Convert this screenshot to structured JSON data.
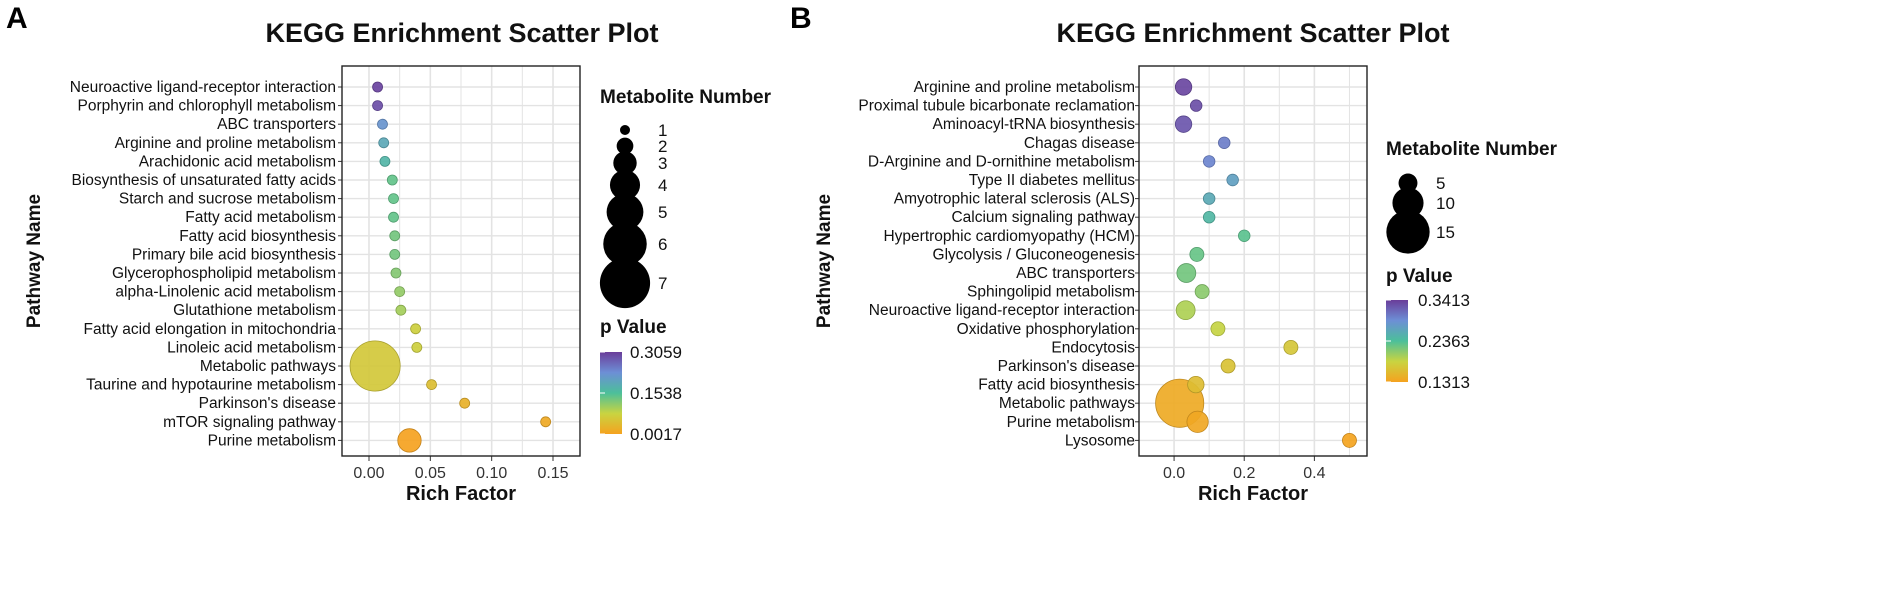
{
  "chart_data": [
    {
      "type": "scatter",
      "panel_label": "A",
      "title": "KEGG Enrichment Scatter Plot",
      "xlabel": "Rich Factor",
      "ylabel": "Pathway Name",
      "xlim": [
        -0.022,
        0.172
      ],
      "xticks": [
        0.0,
        0.05,
        0.1,
        0.15
      ],
      "xtick_labels": [
        "0.00",
        "0.05",
        "0.10",
        "0.15"
      ],
      "size_legend": {
        "title": "Metabolite Number",
        "values": [
          1,
          2,
          3,
          4,
          5,
          6,
          7
        ]
      },
      "color_legend": {
        "title": "p Value",
        "max": 0.3059,
        "mid": 0.1538,
        "min": 0.0017,
        "labels": [
          "0.3059",
          "0.1538",
          "0.0017"
        ]
      },
      "points": [
        {
          "pathway": "Neuroactive ligand-receptor interaction",
          "rich_factor": 0.007,
          "count": 1,
          "p": 0.3
        },
        {
          "pathway": "Porphyrin and chlorophyll metabolism",
          "rich_factor": 0.007,
          "count": 1,
          "p": 0.29
        },
        {
          "pathway": "ABC transporters",
          "rich_factor": 0.011,
          "count": 1,
          "p": 0.22
        },
        {
          "pathway": "Arginine and proline metabolism",
          "rich_factor": 0.012,
          "count": 1,
          "p": 0.19
        },
        {
          "pathway": "Arachidonic acid metabolism",
          "rich_factor": 0.013,
          "count": 1,
          "p": 0.17
        },
        {
          "pathway": "Biosynthesis of unsaturated fatty acids",
          "rich_factor": 0.019,
          "count": 1,
          "p": 0.14
        },
        {
          "pathway": "Starch and sucrose metabolism",
          "rich_factor": 0.02,
          "count": 1,
          "p": 0.14
        },
        {
          "pathway": "Fatty acid metabolism",
          "rich_factor": 0.02,
          "count": 1,
          "p": 0.14
        },
        {
          "pathway": "Fatty acid biosynthesis",
          "rich_factor": 0.021,
          "count": 1,
          "p": 0.13
        },
        {
          "pathway": "Primary bile acid biosynthesis",
          "rich_factor": 0.021,
          "count": 1,
          "p": 0.13
        },
        {
          "pathway": "Glycerophospholipid metabolism",
          "rich_factor": 0.022,
          "count": 1,
          "p": 0.12
        },
        {
          "pathway": "alpha-Linolenic acid metabolism",
          "rich_factor": 0.025,
          "count": 1,
          "p": 0.11
        },
        {
          "pathway": "Glutathione metabolism",
          "rich_factor": 0.026,
          "count": 1,
          "p": 0.1
        },
        {
          "pathway": "Fatty acid elongation in mitochondria",
          "rich_factor": 0.038,
          "count": 1,
          "p": 0.07
        },
        {
          "pathway": "Linoleic acid metabolism",
          "rich_factor": 0.039,
          "count": 1,
          "p": 0.07
        },
        {
          "pathway": "Metabolic pathways",
          "rich_factor": 0.005,
          "count": 7,
          "p": 0.06
        },
        {
          "pathway": "Taurine and hypotaurine metabolism",
          "rich_factor": 0.051,
          "count": 1,
          "p": 0.045
        },
        {
          "pathway": "Parkinson's disease",
          "rich_factor": 0.078,
          "count": 1,
          "p": 0.025
        },
        {
          "pathway": "mTOR signaling pathway",
          "rich_factor": 0.144,
          "count": 1,
          "p": 0.012
        },
        {
          "pathway": "Purine metabolism",
          "rich_factor": 0.033,
          "count": 3,
          "p": 0.002
        }
      ]
    },
    {
      "type": "scatter",
      "panel_label": "B",
      "title": "KEGG Enrichment Scatter Plot",
      "xlabel": "Rich Factor",
      "ylabel": "Pathway Name",
      "xlim": [
        -0.1,
        0.55
      ],
      "xticks": [
        0.0,
        0.2,
        0.4
      ],
      "xtick_labels": [
        "0.0",
        "0.2",
        "0.4"
      ],
      "size_legend": {
        "title": "Metabolite Number",
        "values": [
          5,
          10,
          15
        ]
      },
      "color_legend": {
        "title": "p Value",
        "max": 0.3413,
        "mid": 0.2363,
        "min": 0.1313,
        "labels": [
          "0.3413",
          "0.2363",
          "0.1313"
        ]
      },
      "points": [
        {
          "pathway": "Arginine and proline metabolism",
          "rich_factor": 0.027,
          "count": 4,
          "p": 0.335
        },
        {
          "pathway": "Proximal tubule bicarbonate reclamation",
          "rich_factor": 0.063,
          "count": 2,
          "p": 0.33
        },
        {
          "pathway": "Aminoacyl-tRNA biosynthesis",
          "rich_factor": 0.027,
          "count": 4,
          "p": 0.325
        },
        {
          "pathway": "Chagas disease",
          "rich_factor": 0.143,
          "count": 2,
          "p": 0.3
        },
        {
          "pathway": "D-Arginine and D-ornithine metabolism",
          "rich_factor": 0.1,
          "count": 2,
          "p": 0.295
        },
        {
          "pathway": "Type II diabetes mellitus",
          "rich_factor": 0.167,
          "count": 2,
          "p": 0.27
        },
        {
          "pathway": "Amyotrophic lateral sclerosis (ALS)",
          "rich_factor": 0.1,
          "count": 2,
          "p": 0.26
        },
        {
          "pathway": "Calcium signaling pathway",
          "rich_factor": 0.1,
          "count": 2,
          "p": 0.245
        },
        {
          "pathway": "Hypertrophic cardiomyopathy (HCM)",
          "rich_factor": 0.2,
          "count": 2,
          "p": 0.23
        },
        {
          "pathway": "Glycolysis / Gluconeogenesis",
          "rich_factor": 0.065,
          "count": 3,
          "p": 0.225
        },
        {
          "pathway": "ABC transporters",
          "rich_factor": 0.035,
          "count": 5,
          "p": 0.22
        },
        {
          "pathway": "Sphingolipid metabolism",
          "rich_factor": 0.08,
          "count": 3,
          "p": 0.21
        },
        {
          "pathway": "Neuroactive ligand-receptor interaction",
          "rich_factor": 0.033,
          "count": 5,
          "p": 0.195
        },
        {
          "pathway": "Oxidative phosphorylation",
          "rich_factor": 0.125,
          "count": 3,
          "p": 0.185
        },
        {
          "pathway": "Endocytosis",
          "rich_factor": 0.333,
          "count": 3,
          "p": 0.17
        },
        {
          "pathway": "Parkinson's disease",
          "rich_factor": 0.154,
          "count": 3,
          "p": 0.165
        },
        {
          "pathway": "Fatty acid biosynthesis",
          "rich_factor": 0.062,
          "count": 4,
          "p": 0.16
        },
        {
          "pathway": "Metabolic pathways",
          "rich_factor": 0.016,
          "count": 17,
          "p": 0.14
        },
        {
          "pathway": "Purine metabolism",
          "rich_factor": 0.067,
          "count": 6,
          "p": 0.137
        },
        {
          "pathway": "Lysosome",
          "rich_factor": 0.5,
          "count": 3,
          "p": 0.133
        }
      ]
    }
  ]
}
